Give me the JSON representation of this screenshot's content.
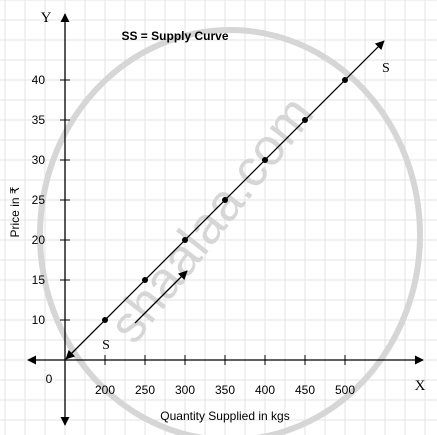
{
  "chart_data": {
    "type": "line",
    "title": "SS = Supply Curve",
    "xlabel": "Quantity Supplied in kgs",
    "ylabel": "Price in ₹",
    "x_axis_letter": "X",
    "y_axis_letter": "Y",
    "origin_label": "0",
    "x_ticks": [
      200,
      250,
      300,
      350,
      400,
      450,
      500
    ],
    "y_ticks": [
      10,
      15,
      20,
      25,
      30,
      35,
      40
    ],
    "series": [
      {
        "label_start": "S",
        "label_end": "S",
        "points": [
          {
            "x": 200,
            "y": 10
          },
          {
            "x": 250,
            "y": 15
          },
          {
            "x": 300,
            "y": 20
          },
          {
            "x": 350,
            "y": 25
          },
          {
            "x": 400,
            "y": 30
          },
          {
            "x": 450,
            "y": 35
          },
          {
            "x": 500,
            "y": 40
          }
        ]
      }
    ],
    "grid": true,
    "watermark": "shaalaa.com",
    "colors": {
      "line": "#000000",
      "grid": "#e3e3e3",
      "watermark": "#d6d6d6",
      "background": "#ffffff"
    }
  }
}
